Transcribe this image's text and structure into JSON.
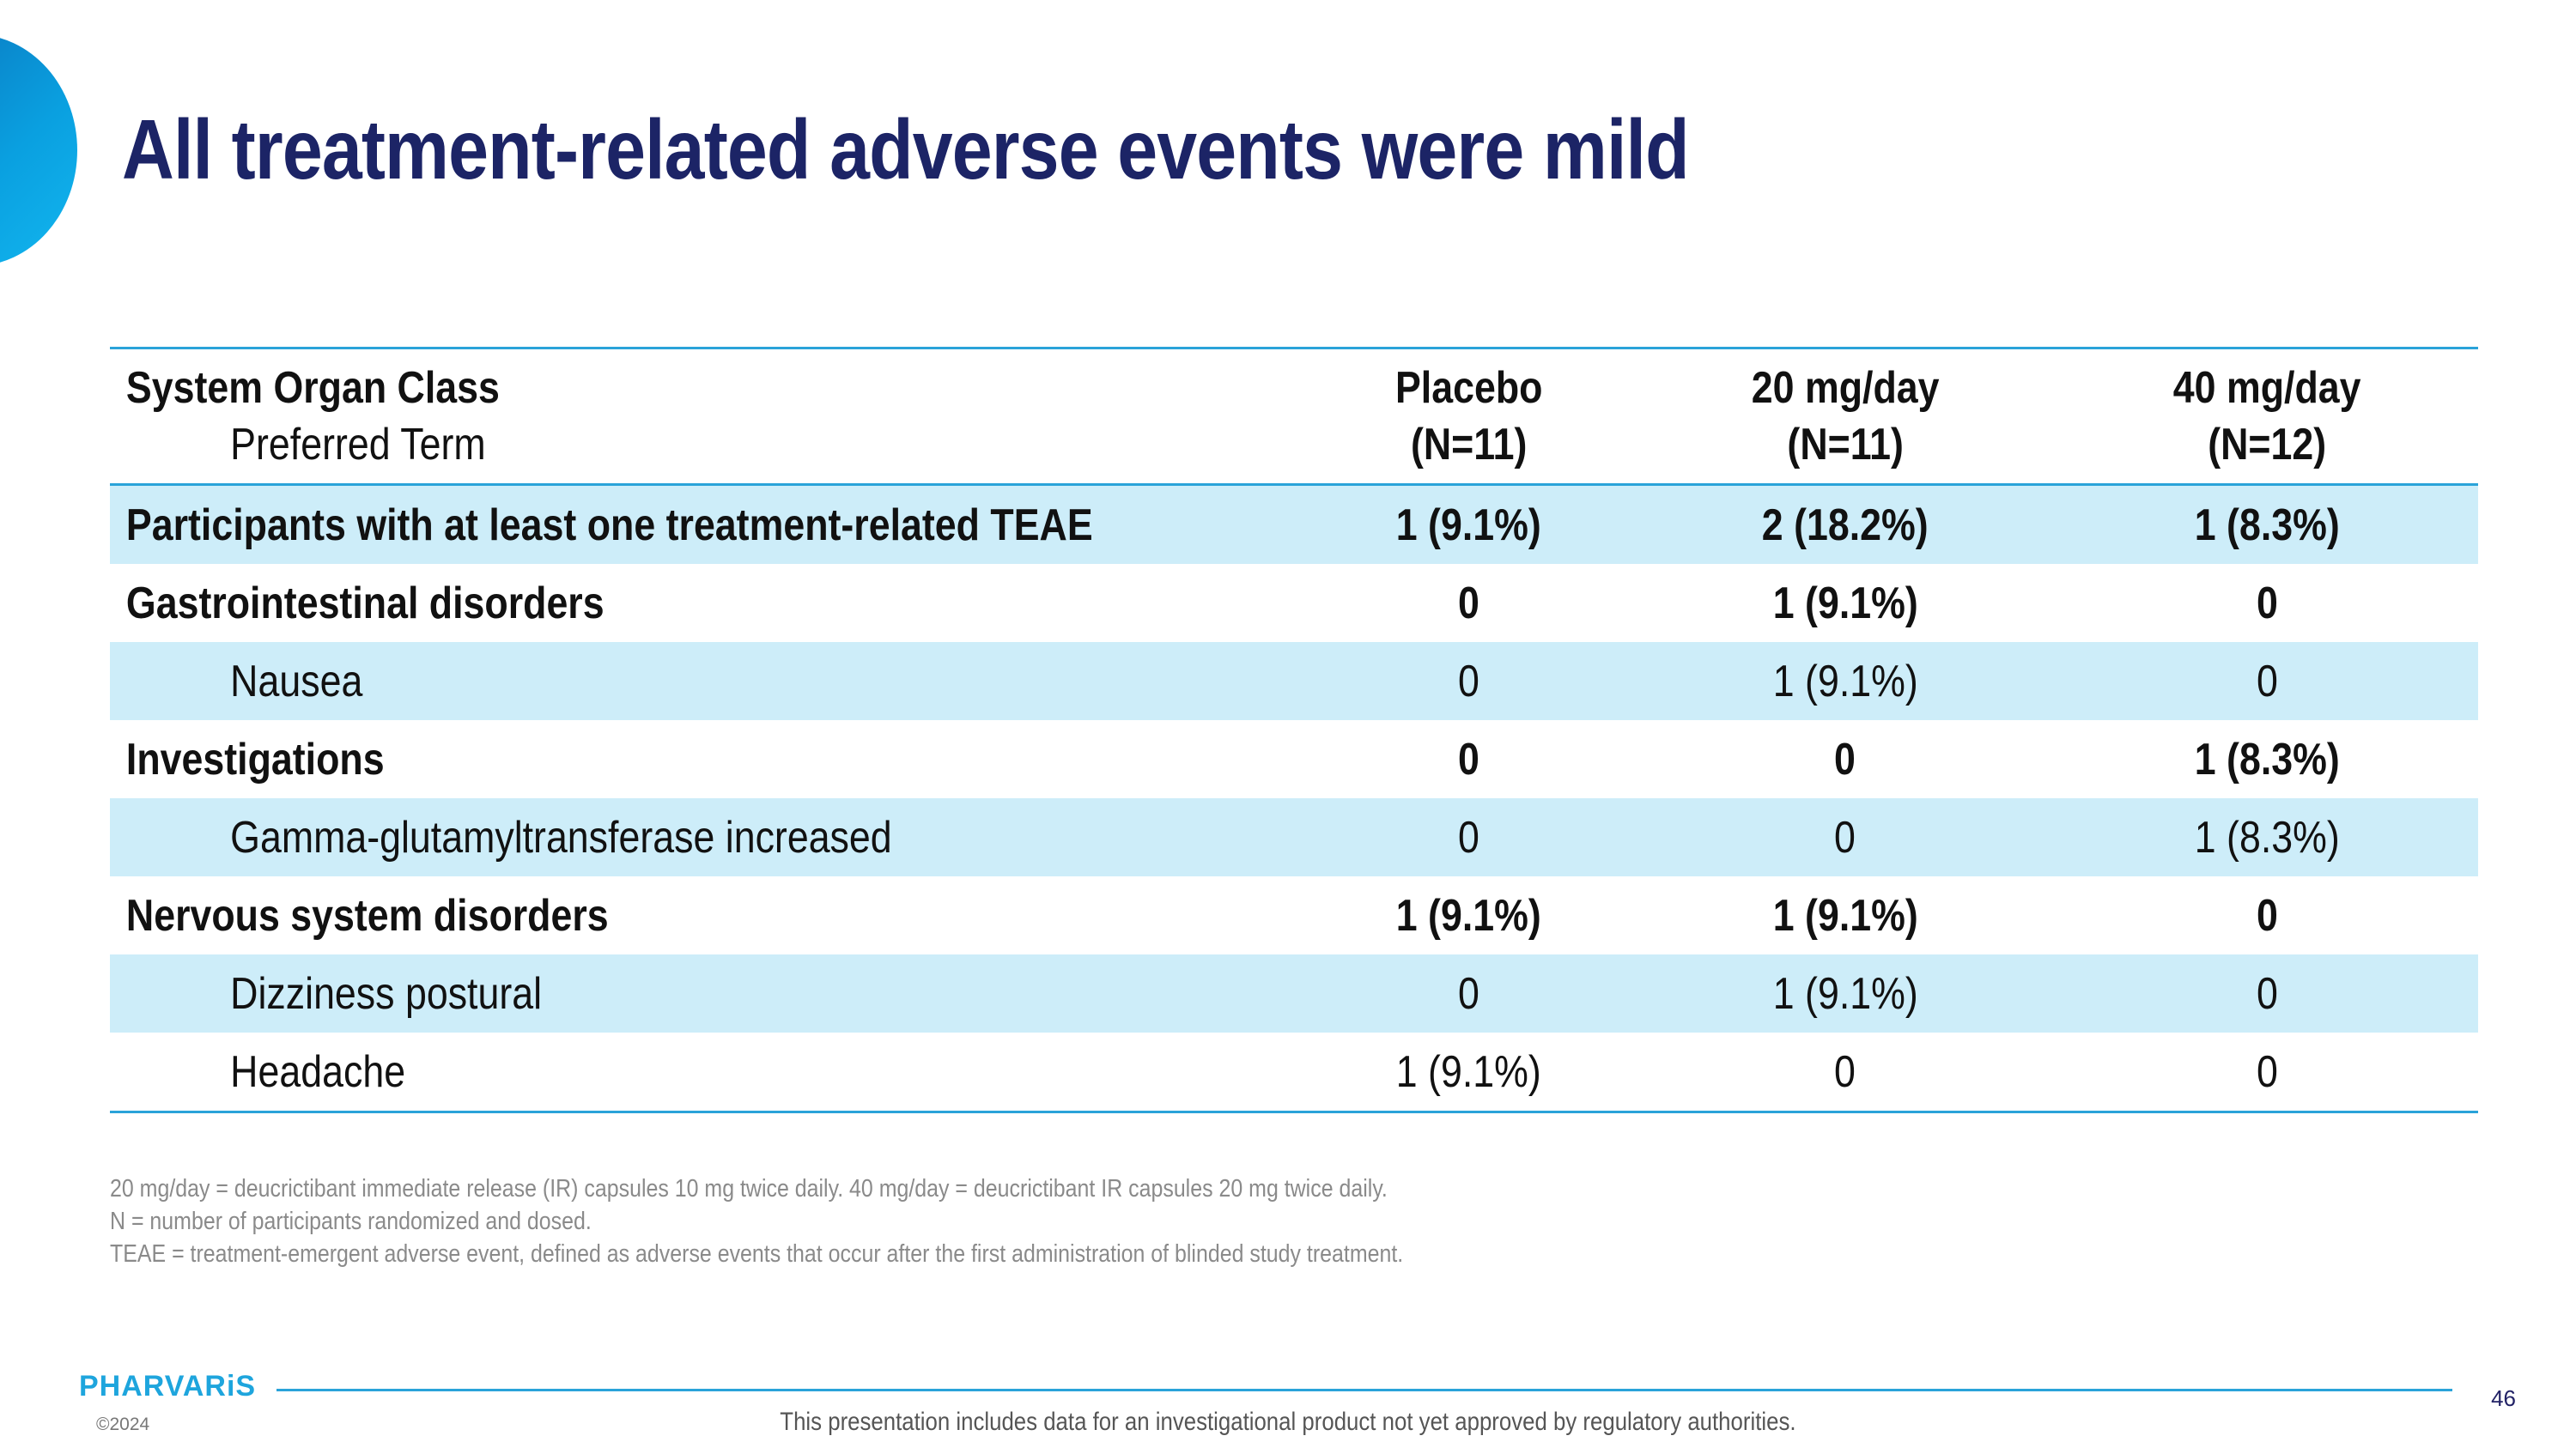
{
  "title": "All treatment-related adverse events were mild",
  "table": {
    "header": {
      "col1_main": "System Organ Class",
      "col1_sub": "Preferred Term",
      "columns": [
        {
          "name": "Placebo",
          "n": "(N=11)"
        },
        {
          "name": "20 mg/day",
          "n": "(N=11)"
        },
        {
          "name": "40 mg/day",
          "n": "(N=12)"
        }
      ]
    },
    "rows": [
      {
        "label": "Participants with at least one treatment-related TEAE",
        "values": [
          "1 (9.1%)",
          "2 (18.2%)",
          "1 (8.3%)"
        ]
      },
      {
        "label": "Gastrointestinal disorders",
        "values": [
          "0",
          "1 (9.1%)",
          "0"
        ]
      },
      {
        "label": "Nausea",
        "values": [
          "0",
          "1 (9.1%)",
          "0"
        ]
      },
      {
        "label": "Investigations",
        "values": [
          "0",
          "0",
          "1 (8.3%)"
        ]
      },
      {
        "label": "Gamma-glutamyltransferase increased",
        "values": [
          "0",
          "0",
          "1 (8.3%)"
        ]
      },
      {
        "label": "Nervous system disorders",
        "values": [
          "1 (9.1%)",
          "1 (9.1%)",
          "0"
        ]
      },
      {
        "label": "Dizziness postural",
        "values": [
          "0",
          "1 (9.1%)",
          "0"
        ]
      },
      {
        "label": "Headache",
        "values": [
          "1 (9.1%)",
          "0",
          "0"
        ]
      }
    ]
  },
  "footnotes": [
    "20 mg/day = deucrictibant immediate release (IR) capsules 10 mg twice daily. 40 mg/day = deucrictibant IR capsules 20 mg twice daily.",
    "N = number of participants randomized and dosed.",
    "TEAE = treatment-emergent adverse event, defined as adverse events that occur after the first administration of blinded study treatment."
  ],
  "footer": {
    "logo": "PHARVARiS",
    "copyright": "©2024",
    "disclaimer": "This presentation includes data for an investigational product not yet approved by regulatory authorities.",
    "page_number": "46"
  },
  "colors": {
    "title": "#1c2466",
    "accent": "#2aa3d9",
    "row_shade": "#cdedf9",
    "brand": "#1ea5dd"
  }
}
